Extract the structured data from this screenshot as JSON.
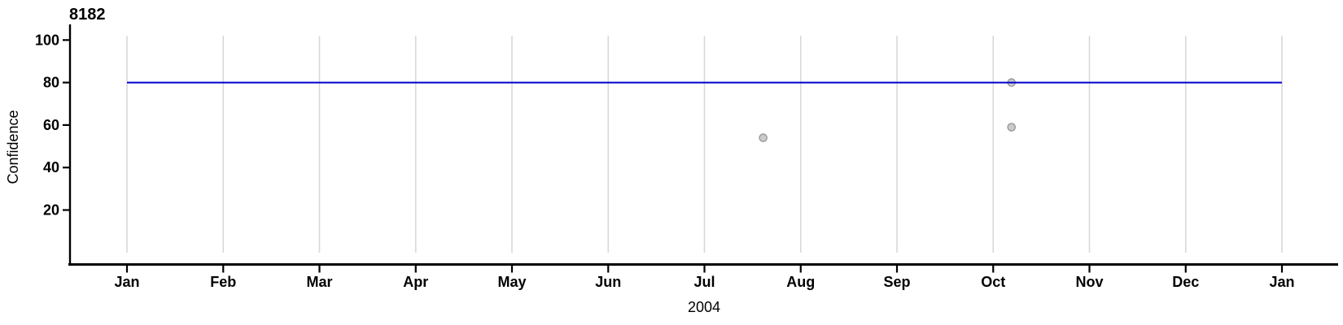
{
  "chart_data": {
    "type": "scatter",
    "title": "8182",
    "xlabel": "2004",
    "ylabel": "Confidence",
    "ylim": [
      0,
      102
    ],
    "grid": "vertical-monthly",
    "legend": "none",
    "x_tick_labels": [
      "Jan",
      "Feb",
      "Mar",
      "Apr",
      "May",
      "Jun",
      "Jul",
      "Aug",
      "Sep",
      "Oct",
      "Nov",
      "Dec",
      "Jan"
    ],
    "y_ticks": [
      20,
      40,
      60,
      80,
      100
    ],
    "hline": {
      "y": 80,
      "x_start_month": 0,
      "x_end_month": 12,
      "color": "#0000cd"
    },
    "points": [
      {
        "date": "2004-07-20",
        "month_fraction": 6.61,
        "value": 54
      },
      {
        "date": "2004-10-07",
        "month_fraction": 9.19,
        "value": 59
      },
      {
        "date": "2004-10-07",
        "month_fraction": 9.19,
        "value": 80
      }
    ],
    "colors": {
      "line": "#0000cd",
      "point_fill": "#cbcbcb",
      "point_stroke": "#999999",
      "grid": "#d8d8d8",
      "axis": "#000000",
      "text": "#000000"
    }
  }
}
